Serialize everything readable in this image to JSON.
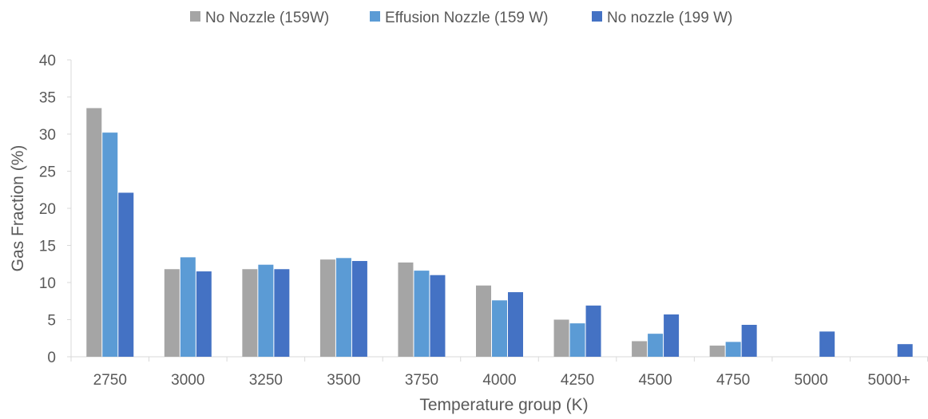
{
  "chart_data": {
    "type": "bar",
    "categories": [
      "2750",
      "3000",
      "3250",
      "3500",
      "3750",
      "4000",
      "4250",
      "4500",
      "4750",
      "5000",
      "5000+"
    ],
    "series": [
      {
        "name": "No Nozzle (159W)",
        "color": "#a5a5a5",
        "values": [
          33.5,
          11.8,
          11.8,
          13.1,
          12.7,
          9.6,
          5.0,
          2.1,
          1.5,
          0,
          0
        ]
      },
      {
        "name": "Effusion Nozzle (159 W)",
        "color": "#5b9bd5",
        "values": [
          30.2,
          13.4,
          12.4,
          13.3,
          11.6,
          7.6,
          4.5,
          3.1,
          2.0,
          0,
          0
        ]
      },
      {
        "name": "No nozzle (199 W)",
        "color": "#4472c4",
        "values": [
          22.1,
          11.5,
          11.8,
          12.9,
          11.0,
          8.7,
          6.9,
          5.7,
          4.3,
          3.4,
          1.7
        ]
      }
    ],
    "xlabel": "Temperature group (K)",
    "ylabel": "Gas Fraction (%)",
    "ylim": [
      0,
      40
    ],
    "yticks": [
      "0",
      "5",
      "10",
      "15",
      "20",
      "25",
      "30",
      "35",
      "40"
    ],
    "grid": false,
    "legend": "top-center"
  }
}
